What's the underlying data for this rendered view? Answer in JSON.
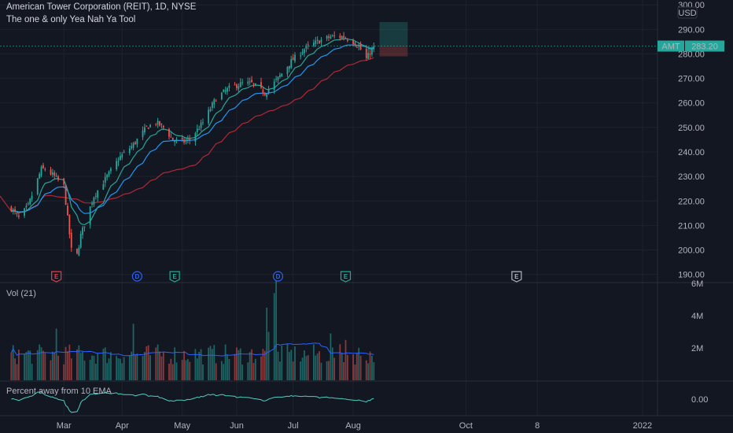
{
  "header": {
    "title": "American Tower Corporation (REIT), 1D, NYSE",
    "indicator": "The one & only Yea Nah Ya Tool"
  },
  "price_axis": {
    "currency": "USD",
    "ticks": [
      "300.00",
      "290.00",
      "280.00",
      "270.00",
      "260.00",
      "250.00",
      "240.00",
      "230.00",
      "220.00",
      "210.00",
      "200.00",
      "190.00"
    ],
    "ticker": "AMT",
    "last_price": "283.20"
  },
  "volume_pane": {
    "label": "Vol (21)",
    "ticks": [
      "6M",
      "4M",
      "2M"
    ]
  },
  "percent_pane": {
    "label": "Percent away from 10 EMA",
    "ticks": [
      "0.00"
    ]
  },
  "time_axis": [
    "Mar",
    "Apr",
    "May",
    "Jun",
    "Jul",
    "Aug",
    "Oct",
    "8",
    "2022"
  ],
  "events": [
    {
      "letter": "E",
      "color": "#f23645"
    },
    {
      "letter": "D",
      "color": "#2962ff"
    },
    {
      "letter": "E",
      "color": "#22ab94"
    },
    {
      "letter": "D",
      "color": "#2962ff"
    },
    {
      "letter": "E",
      "color": "#22ab94"
    },
    {
      "letter": "E",
      "color": "#b2b5be"
    }
  ],
  "colors": {
    "background": "#131722",
    "up": "#26a69a",
    "down": "#ef5350",
    "ema_fast": "#26a69a",
    "ema_mid": "#2196f3",
    "sma_slow": "#b22833",
    "volume_ma": "#2962ff",
    "percent_line": "#4dd0c4",
    "price_tag": "#26a69a"
  },
  "chart_data": {
    "type": "candlestick",
    "title": "American Tower Corporation (REIT), 1D, NYSE",
    "period": "1D",
    "ylim": [
      187,
      302
    ],
    "volume_ylim": [
      0,
      6000000
    ],
    "last_price": 283.2,
    "anchors": [
      [
        "2021-02-01",
        217
      ],
      [
        "2021-02-05",
        213
      ],
      [
        "2021-02-10",
        218
      ],
      [
        "2021-02-17",
        233
      ],
      [
        "2021-02-19",
        233
      ],
      [
        "2021-02-24",
        230
      ],
      [
        "2021-03-01",
        226
      ],
      [
        "2021-03-03",
        213
      ],
      [
        "2021-03-05",
        200
      ],
      [
        "2021-03-08",
        198
      ],
      [
        "2021-03-10",
        206
      ],
      [
        "2021-03-17",
        222
      ],
      [
        "2021-03-24",
        230
      ],
      [
        "2021-03-31",
        238
      ],
      [
        "2021-04-07",
        243
      ],
      [
        "2021-04-14",
        250
      ],
      [
        "2021-04-19",
        252
      ],
      [
        "2021-04-23",
        250
      ],
      [
        "2021-04-28",
        245
      ],
      [
        "2021-05-03",
        244
      ],
      [
        "2021-05-07",
        245
      ],
      [
        "2021-05-14",
        252
      ],
      [
        "2021-05-21",
        262
      ],
      [
        "2021-05-28",
        266
      ],
      [
        "2021-06-04",
        268
      ],
      [
        "2021-06-09",
        268
      ],
      [
        "2021-06-16",
        264
      ],
      [
        "2021-06-23",
        270
      ],
      [
        "2021-06-30",
        277
      ],
      [
        "2021-07-07",
        282
      ],
      [
        "2021-07-14",
        285
      ],
      [
        "2021-07-21",
        287
      ],
      [
        "2021-07-28",
        287
      ],
      [
        "2021-08-02",
        285
      ],
      [
        "2021-08-05",
        283
      ],
      [
        "2021-08-09",
        278
      ],
      [
        "2021-08-13",
        283.2
      ]
    ],
    "position_tool": {
      "entry": 283.2,
      "target": 293,
      "stop": 279,
      "start": "2021-08-16",
      "end": "2021-08-31"
    },
    "events": [
      {
        "date": "2021-02-25",
        "type": "E"
      },
      {
        "date": "2021-04-09",
        "type": "D"
      },
      {
        "date": "2021-04-29",
        "type": "E"
      },
      {
        "date": "2021-06-23",
        "type": "D"
      },
      {
        "date": "2021-07-29",
        "type": "E"
      },
      {
        "date": "2021-10-28",
        "type": "E"
      }
    ],
    "time_ticks": [
      {
        "label": "Mar",
        "date": "2021-03-01"
      },
      {
        "label": "Apr",
        "date": "2021-04-01"
      },
      {
        "label": "May",
        "date": "2021-05-03"
      },
      {
        "label": "Jun",
        "date": "2021-06-01"
      },
      {
        "label": "Jul",
        "date": "2021-07-01"
      },
      {
        "label": "Aug",
        "date": "2021-08-02"
      },
      {
        "label": "Oct",
        "date": "2021-10-01"
      },
      {
        "label": "8",
        "date": "2021-11-08"
      },
      {
        "label": "2022",
        "date": "2022-01-03"
      }
    ],
    "x_range": [
      "2021-01-26",
      "2022-01-11"
    ],
    "last_bar": "2021-08-13",
    "volume_avg": 1600000,
    "volume_spikes": [
      {
        "date": "2021-02-25",
        "value": 3200000
      },
      {
        "date": "2021-04-07",
        "value": 3500000
      },
      {
        "date": "2021-06-17",
        "value": 4500000
      },
      {
        "date": "2021-06-18",
        "value": 3000000
      },
      {
        "date": "2021-06-21",
        "value": 5400000
      },
      {
        "date": "2021-06-22",
        "value": 6200000
      },
      {
        "date": "2021-07-21",
        "value": 2900000
      },
      {
        "date": "2021-07-29",
        "value": 2500000
      }
    ]
  }
}
